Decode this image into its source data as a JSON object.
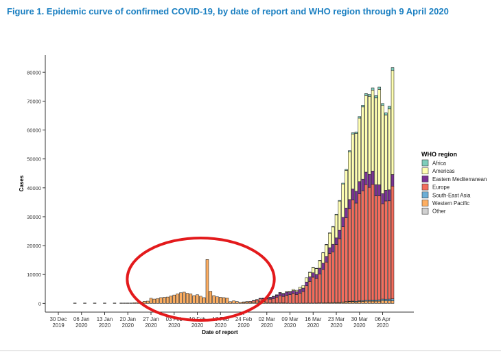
{
  "figure_title": "Figure 1. Epidemic curve of confirmed COVID-19, by date of report and WHO region through 9 April 2020",
  "colors": {
    "Africa": "#7fcdbb",
    "Americas": "#ffffb2",
    "Eastern Mediterranean": "#7b3294",
    "Europe": "#f46d5d",
    "South-East Asia": "#6baed6",
    "Western Pacific": "#fdae61",
    "Other": "#d0d0d0",
    "annotation_circle": "#e31a1c"
  },
  "chart_data": {
    "type": "bar",
    "stacked": true,
    "title": "",
    "xlabel": "Date of report",
    "ylabel": "Cases",
    "ylim": [
      -3000,
      86000
    ],
    "yticks": [
      0,
      10000,
      20000,
      30000,
      40000,
      50000,
      60000,
      70000,
      80000
    ],
    "x_start_date": "2019-12-30",
    "x_end_date": "2020-04-09",
    "x_ticks": [
      {
        "date": "2019-12-30",
        "line1": "30 Dec",
        "line2": "2019"
      },
      {
        "date": "2020-01-06",
        "line1": "06 Jan",
        "line2": "2020"
      },
      {
        "date": "2020-01-13",
        "line1": "13 Jan",
        "line2": "2020"
      },
      {
        "date": "2020-01-20",
        "line1": "20 Jan",
        "line2": "2020"
      },
      {
        "date": "2020-01-27",
        "line1": "27 Jan",
        "line2": "2020"
      },
      {
        "date": "2020-02-03",
        "line1": "03 Feb",
        "line2": "2020"
      },
      {
        "date": "2020-02-10",
        "line1": "10 Feb",
        "line2": "2020"
      },
      {
        "date": "2020-02-17",
        "line1": "17 Feb",
        "line2": "2020"
      },
      {
        "date": "2020-02-24",
        "line1": "24 Feb",
        "line2": "2020"
      },
      {
        "date": "2020-03-02",
        "line1": "02 Mar",
        "line2": "2020"
      },
      {
        "date": "2020-03-09",
        "line1": "09 Mar",
        "line2": "2020"
      },
      {
        "date": "2020-03-16",
        "line1": "16 Mar",
        "line2": "2020"
      },
      {
        "date": "2020-03-23",
        "line1": "23 Mar",
        "line2": "2020"
      },
      {
        "date": "2020-03-30",
        "line1": "30 Mar",
        "line2": "2020"
      },
      {
        "date": "2020-04-06",
        "line1": "06 Apr",
        "line2": "2020"
      }
    ],
    "legend": {
      "title": "WHO region",
      "position": "right",
      "items": [
        "Africa",
        "Americas",
        "Eastern Mediterranean",
        "Europe",
        "South-East Asia",
        "Western Pacific",
        "Other"
      ]
    },
    "series_order": [
      "Western Pacific",
      "South-East Asia",
      "Europe",
      "Eastern Mediterranean",
      "Americas",
      "Africa",
      "Other"
    ],
    "dates": [
      "2020-01-04",
      "2020-01-07",
      "2020-01-10",
      "2020-01-13",
      "2020-01-16",
      "2020-01-18",
      "2020-01-19",
      "2020-01-20",
      "2020-01-21",
      "2020-01-22",
      "2020-01-23",
      "2020-01-24",
      "2020-01-25",
      "2020-01-26",
      "2020-01-27",
      "2020-01-28",
      "2020-01-29",
      "2020-01-30",
      "2020-01-31",
      "2020-02-01",
      "2020-02-02",
      "2020-02-03",
      "2020-02-04",
      "2020-02-05",
      "2020-02-06",
      "2020-02-07",
      "2020-02-08",
      "2020-02-09",
      "2020-02-10",
      "2020-02-11",
      "2020-02-12",
      "2020-02-13",
      "2020-02-14",
      "2020-02-15",
      "2020-02-16",
      "2020-02-17",
      "2020-02-18",
      "2020-02-19",
      "2020-02-20",
      "2020-02-21",
      "2020-02-22",
      "2020-02-23",
      "2020-02-24",
      "2020-02-25",
      "2020-02-26",
      "2020-02-27",
      "2020-02-28",
      "2020-02-29",
      "2020-03-01",
      "2020-03-02",
      "2020-03-03",
      "2020-03-04",
      "2020-03-05",
      "2020-03-06",
      "2020-03-07",
      "2020-03-08",
      "2020-03-09",
      "2020-03-10",
      "2020-03-11",
      "2020-03-12",
      "2020-03-13",
      "2020-03-14",
      "2020-03-15",
      "2020-03-16",
      "2020-03-17",
      "2020-03-18",
      "2020-03-19",
      "2020-03-20",
      "2020-03-21",
      "2020-03-22",
      "2020-03-23",
      "2020-03-24",
      "2020-03-25",
      "2020-03-26",
      "2020-03-27",
      "2020-03-28",
      "2020-03-29",
      "2020-03-30",
      "2020-03-31",
      "2020-04-01",
      "2020-04-02",
      "2020-04-03",
      "2020-04-04",
      "2020-04-05",
      "2020-04-06",
      "2020-04-07",
      "2020-04-08",
      "2020-04-09"
    ],
    "series": [
      {
        "name": "Western Pacific",
        "values": [
          40,
          40,
          40,
          40,
          40,
          20,
          30,
          80,
          140,
          260,
          300,
          500,
          700,
          800,
          1800,
          1500,
          1700,
          2000,
          2100,
          2200,
          2600,
          2900,
          3300,
          3700,
          3900,
          3500,
          3300,
          2700,
          3000,
          2500,
          2000,
          15200,
          4200,
          2700,
          2300,
          2100,
          2000,
          1900,
          600,
          900,
          650,
          400,
          400,
          500,
          450,
          450,
          500,
          600,
          600,
          250,
          180,
          150,
          150,
          150,
          200,
          100,
          50,
          50,
          70,
          70,
          100,
          100,
          100,
          100,
          120,
          200,
          250,
          250,
          250,
          300,
          300,
          300,
          400,
          500,
          600,
          600,
          500,
          700,
          700,
          800,
          800,
          800,
          800,
          800,
          1000,
          900,
          900,
          900
        ]
      },
      {
        "name": "South-East Asia",
        "values": [
          0,
          0,
          0,
          0,
          0,
          0,
          0,
          0,
          0,
          0,
          0,
          0,
          0,
          0,
          0,
          0,
          0,
          0,
          0,
          0,
          0,
          0,
          0,
          0,
          0,
          0,
          0,
          0,
          0,
          0,
          0,
          0,
          0,
          0,
          0,
          0,
          0,
          0,
          0,
          0,
          0,
          0,
          0,
          0,
          0,
          0,
          0,
          0,
          0,
          0,
          0,
          0,
          0,
          0,
          0,
          0,
          0,
          0,
          0,
          0,
          0,
          0,
          0,
          0,
          0,
          0,
          20,
          30,
          40,
          60,
          80,
          100,
          120,
          130,
          150,
          200,
          230,
          250,
          300,
          320,
          350,
          400,
          400,
          450,
          500,
          550,
          600,
          700
        ]
      },
      {
        "name": "Europe",
        "values": [
          0,
          0,
          0,
          0,
          0,
          0,
          0,
          0,
          0,
          0,
          0,
          0,
          0,
          0,
          0,
          0,
          0,
          0,
          0,
          0,
          0,
          0,
          0,
          0,
          0,
          0,
          0,
          0,
          0,
          0,
          0,
          0,
          0,
          0,
          0,
          0,
          0,
          0,
          0,
          0,
          0,
          0,
          50,
          150,
          250,
          450,
          700,
          1000,
          1000,
          1300,
          1300,
          1500,
          2000,
          2500,
          2200,
          2700,
          3000,
          3400,
          3000,
          3500,
          4000,
          6000,
          7500,
          9000,
          8500,
          10000,
          11500,
          14000,
          17000,
          17500,
          20000,
          22000,
          26000,
          29000,
          32000,
          35000,
          34000,
          37000,
          38000,
          40000,
          39000,
          40000,
          36000,
          36000,
          33000,
          34000,
          34000,
          39000
        ]
      },
      {
        "name": "Eastern Mediterranean",
        "values": [
          0,
          0,
          0,
          0,
          0,
          0,
          0,
          0,
          0,
          0,
          0,
          0,
          0,
          0,
          0,
          0,
          0,
          0,
          0,
          0,
          0,
          0,
          0,
          0,
          0,
          0,
          0,
          0,
          0,
          0,
          0,
          0,
          0,
          0,
          0,
          0,
          0,
          0,
          0,
          0,
          0,
          0,
          0,
          0,
          0,
          50,
          100,
          200,
          300,
          400,
          500,
          700,
          700,
          1000,
          900,
          1100,
          900,
          1000,
          1000,
          1300,
          1200,
          1300,
          1600,
          1500,
          1400,
          2000,
          2200,
          2000,
          2000,
          2600,
          2300,
          3000,
          3300,
          3400,
          3200,
          3800,
          4100,
          4200,
          4000,
          4300,
          4500,
          4600,
          3900,
          3800,
          3500,
          3700,
          3800,
          4000
        ]
      },
      {
        "name": "Americas",
        "values": [
          0,
          0,
          0,
          0,
          0,
          0,
          0,
          0,
          0,
          0,
          0,
          0,
          0,
          0,
          0,
          0,
          0,
          0,
          0,
          0,
          0,
          0,
          0,
          0,
          0,
          0,
          0,
          0,
          0,
          0,
          0,
          0,
          0,
          0,
          0,
          0,
          0,
          0,
          0,
          0,
          0,
          0,
          0,
          0,
          0,
          0,
          0,
          0,
          0,
          0,
          50,
          100,
          100,
          150,
          200,
          250,
          300,
          400,
          500,
          700,
          900,
          1500,
          1500,
          1800,
          2000,
          2600,
          3500,
          4000,
          5000,
          6000,
          8000,
          10000,
          11500,
          13000,
          16500,
          19000,
          20000,
          22000,
          25000,
          26500,
          27000,
          28000,
          30000,
          33000,
          30500,
          26000,
          28000,
          36000
        ]
      },
      {
        "name": "Africa",
        "values": [
          0,
          0,
          0,
          0,
          0,
          0,
          0,
          0,
          0,
          0,
          0,
          0,
          0,
          0,
          0,
          0,
          0,
          0,
          0,
          0,
          0,
          0,
          0,
          0,
          0,
          0,
          0,
          0,
          0,
          0,
          0,
          0,
          0,
          0,
          0,
          0,
          0,
          0,
          0,
          0,
          0,
          0,
          0,
          0,
          0,
          0,
          0,
          0,
          0,
          0,
          0,
          0,
          0,
          0,
          0,
          0,
          0,
          0,
          0,
          0,
          0,
          0,
          20,
          30,
          40,
          60,
          80,
          100,
          150,
          180,
          200,
          250,
          300,
          350,
          400,
          450,
          500,
          550,
          600,
          700,
          700,
          800,
          800,
          800,
          700,
          800,
          900,
          1000
        ]
      },
      {
        "name": "Other",
        "values": [
          0,
          0,
          0,
          0,
          0,
          0,
          0,
          0,
          0,
          0,
          0,
          0,
          0,
          0,
          0,
          0,
          0,
          0,
          0,
          0,
          0,
          0,
          0,
          0,
          0,
          0,
          0,
          0,
          0,
          0,
          0,
          0,
          0,
          0,
          0,
          0,
          0,
          0,
          0,
          0,
          0,
          0,
          0,
          0,
          0,
          0,
          0,
          0,
          0,
          0,
          0,
          0,
          0,
          0,
          0,
          0,
          0,
          0,
          0,
          0,
          0,
          0,
          0,
          0,
          0,
          0,
          0,
          0,
          0,
          0,
          0,
          0,
          0,
          0,
          0,
          0,
          0,
          0,
          0,
          0,
          0,
          0,
          0,
          0,
          0,
          0,
          0,
          0
        ]
      }
    ],
    "annotation": {
      "shape": "ellipse",
      "color": "#e31a1c",
      "start_date": "2020-01-25",
      "end_date": "2020-02-26"
    }
  }
}
